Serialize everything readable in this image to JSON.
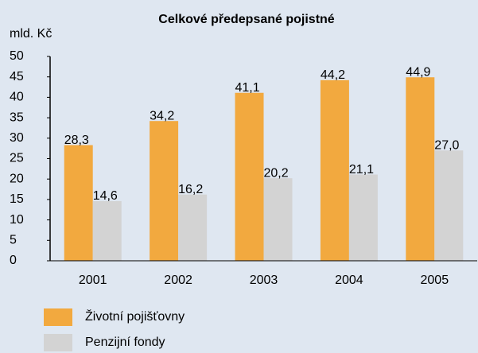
{
  "chart_data": {
    "type": "bar",
    "title": "Celkové předepsané pojistné",
    "y_label": "mld. Kč",
    "categories": [
      "2001",
      "2002",
      "2003",
      "2004",
      "2005"
    ],
    "series": [
      {
        "name": "Životní pojišťovny",
        "color": "#f2a93f",
        "values": [
          28.3,
          34.2,
          41.1,
          44.2,
          44.9
        ],
        "value_labels": [
          "28,3",
          "34,2",
          "41,1",
          "44,2",
          "44,9"
        ]
      },
      {
        "name": "Penzijní fondy",
        "color": "#d3d3d3",
        "values": [
          14.6,
          16.2,
          20.2,
          21.1,
          27.0
        ],
        "value_labels": [
          "14,6",
          "16,2",
          "20,2",
          "21,1",
          "27,0"
        ]
      }
    ],
    "ylim": [
      0,
      50
    ],
    "yticks": [
      0,
      5,
      10,
      15,
      20,
      25,
      30,
      35,
      40,
      45,
      50
    ],
    "grid": false
  }
}
